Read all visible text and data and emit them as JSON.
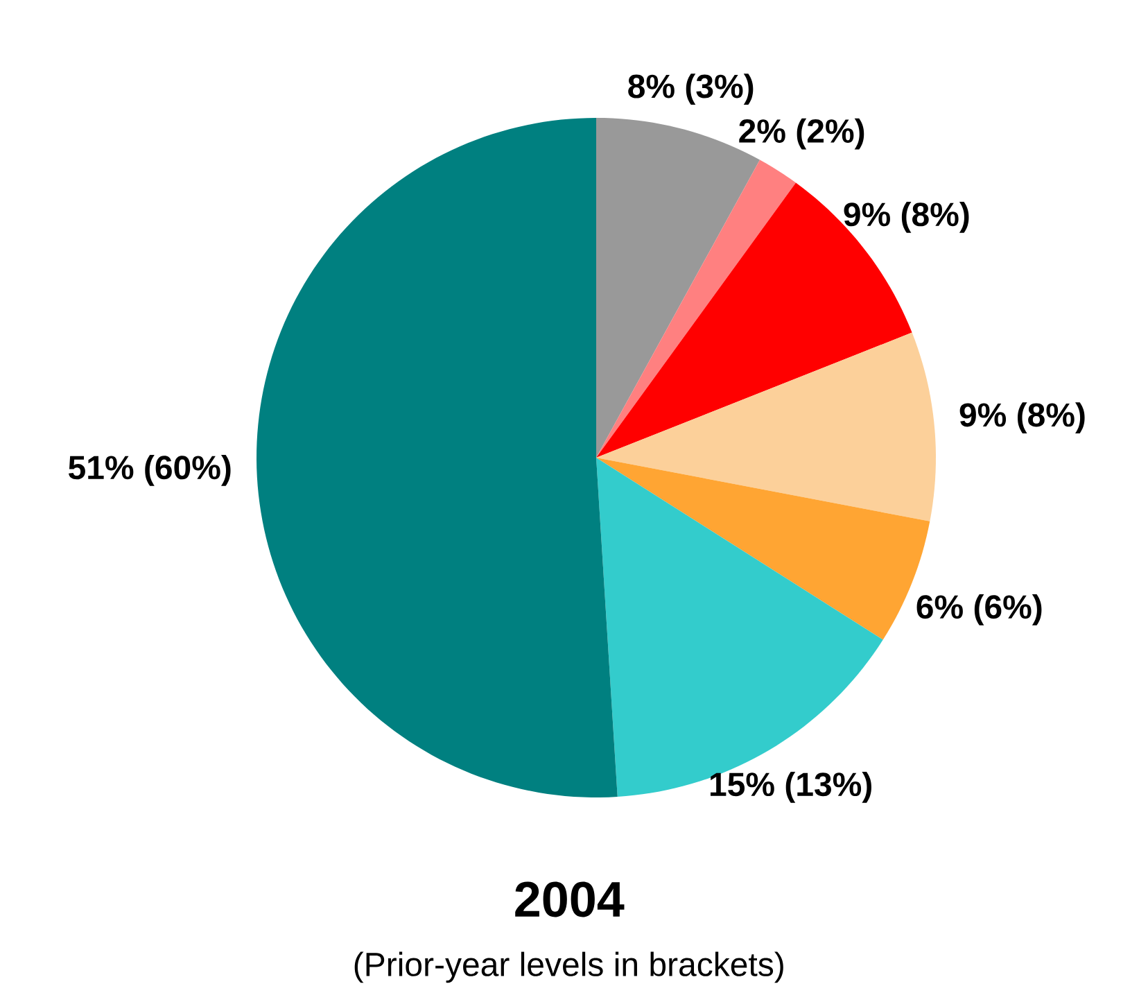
{
  "chart_data": {
    "type": "pie",
    "title": "2004",
    "subtitle": "(Prior-year levels in brackets)",
    "categories": [
      null,
      null,
      null,
      null,
      null,
      null,
      null
    ],
    "values": [
      8,
      2,
      9,
      9,
      6,
      15,
      51
    ],
    "colors": [
      "#999999",
      "#ff8080",
      "#ff0000",
      "#fcd09a",
      "#ffa533",
      "#33cccc",
      "#008080"
    ],
    "value_labels": [
      "8% (3%)",
      "2% (2%)",
      "9% (8%)",
      "9% (8%)",
      "6% (6%)",
      "15% (13%)",
      "51%  (60%)"
    ]
  }
}
